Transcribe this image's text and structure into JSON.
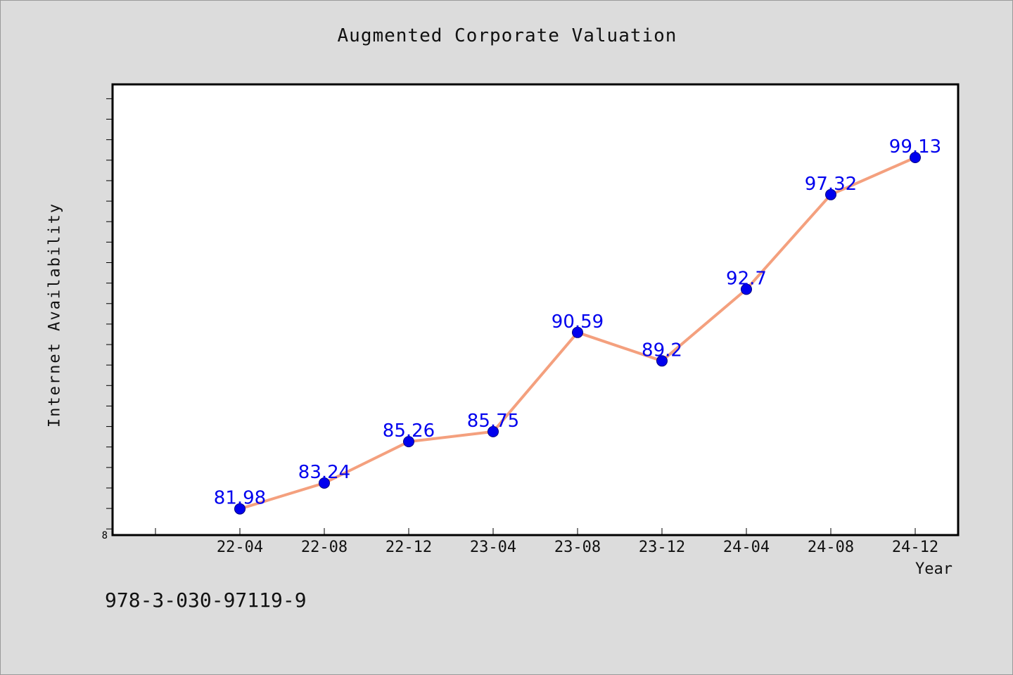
{
  "chart_data": {
    "type": "line",
    "title": "Augmented Corporate Valuation",
    "xlabel": "Year",
    "ylabel": "Internet Availability",
    "categories": [
      "22-04",
      "22-08",
      "22-12",
      "23-04",
      "23-08",
      "23-12",
      "24-04",
      "24-08",
      "24-12"
    ],
    "series": [
      {
        "values": [
          81.98,
          83.24,
          85.26,
          85.75,
          90.59,
          89.2,
          92.7,
          97.32,
          99.13
        ],
        "data_labels": [
          "81.98",
          "83.24",
          "85.26",
          "85.75",
          "90.59",
          "89.2",
          "92.7",
          "97.32",
          "99.13"
        ],
        "line_color": "#f4a07e",
        "marker_color": "#0000ee",
        "label_color": "#0000ee"
      }
    ],
    "y_tick_labels": [
      "8"
    ],
    "ylim": [
      80.7,
      102.7
    ],
    "y_tick_step": 1,
    "grid": false,
    "legend": "none"
  },
  "footnote": "978-3-030-97119-9"
}
